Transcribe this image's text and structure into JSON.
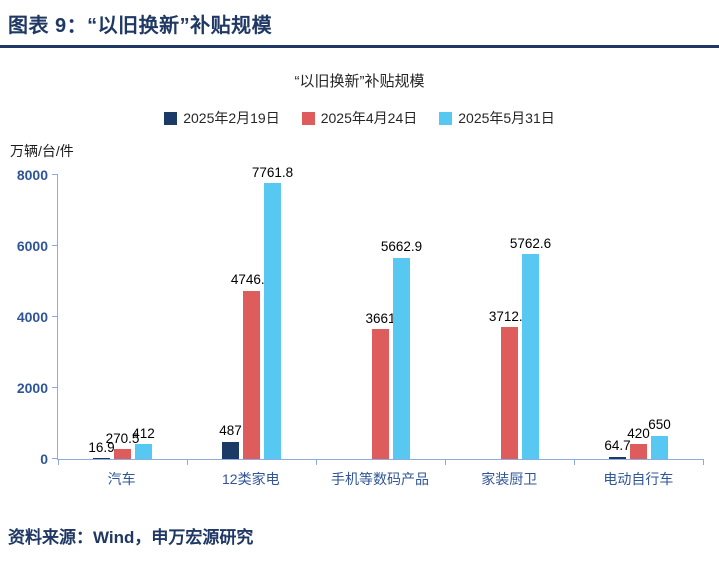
{
  "header": {
    "title": "图表 9：“以旧换新”补贴规模"
  },
  "chart_data": {
    "type": "bar",
    "title": "“以旧换新”补贴规模",
    "unit_label": "万辆/台/件",
    "categories": [
      "汽车",
      "12类家电",
      "手机等数码产品",
      "家装厨卫",
      "电动自行车"
    ],
    "series": [
      {
        "name": "2025年2月19日",
        "color": "#1B3A66",
        "values": [
          16.9,
          487,
          null,
          null,
          64.7
        ]
      },
      {
        "name": "2025年4月24日",
        "color": "#DE5C5C",
        "values": [
          270.5,
          4746.6,
          3661,
          3712.3,
          420
        ]
      },
      {
        "name": "2025年5月31日",
        "color": "#57C8F2",
        "values": [
          412,
          7761.8,
          5662.9,
          5762.6,
          650
        ]
      }
    ],
    "ylim": [
      0,
      8000
    ],
    "yticks": [
      0,
      2000,
      4000,
      6000,
      8000
    ],
    "grid": false,
    "legend_position": "top"
  },
  "footer": {
    "source": "资料来源：Wind，申万宏源研究"
  },
  "colors": {
    "accent_navy": "#1F3864",
    "axis_line_blue": "#8FAADC",
    "tick_label_blue": "#2F5597",
    "series_navy": "#1B3A66",
    "series_red": "#DE5C5C",
    "series_lightblue": "#57C8F2"
  }
}
